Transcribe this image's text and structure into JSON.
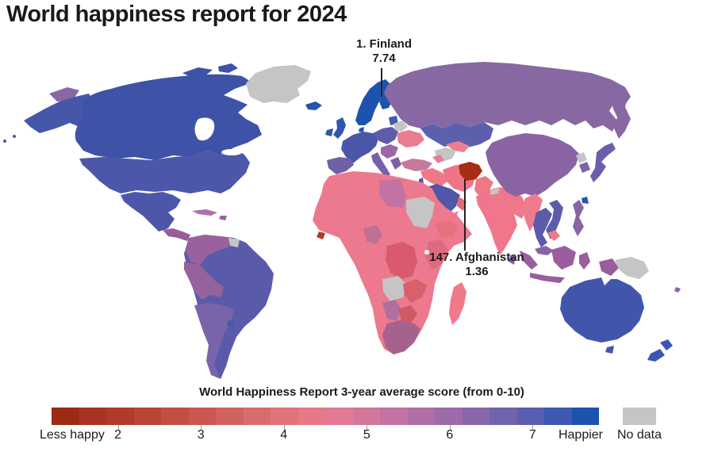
{
  "title": "World happiness report for 2024",
  "annotations": {
    "finland": {
      "label": "1. Finland",
      "value": "7.74"
    },
    "afghanistan": {
      "label": "147. Afghanistan",
      "value": "1.36"
    }
  },
  "legend": {
    "title": "World Happiness Report 3-year average score (from 0-10)",
    "left_label": "Less happy",
    "right_label": "Happier",
    "no_data_label": "No data",
    "no_data_color": "#c5c5c6",
    "range": [
      1.2,
      7.8
    ],
    "ticks": [
      "2",
      "3",
      "4",
      "5",
      "6",
      "7"
    ],
    "gradient_blocks": [
      "#9c2a14",
      "#a93321",
      "#b23a28",
      "#ba4534",
      "#c24f42",
      "#ca5850",
      "#d2625f",
      "#da6b6d",
      "#e2737b",
      "#e67887",
      "#e27a93",
      "#d4779d",
      "#c373a3",
      "#b06fa7",
      "#9d6baa",
      "#8867ac",
      "#7263ae",
      "#5a5eb0",
      "#3f58b1",
      "#1c53b0"
    ]
  },
  "chart_data": {
    "type": "heatmap",
    "title": "World happiness report for 2024",
    "legend_title": "World Happiness Report 3-year average score (from 0-10)",
    "scale": {
      "shown_range": [
        1.2,
        7.8
      ],
      "full_scale": [
        0,
        10
      ],
      "ticks": [
        2,
        3,
        4,
        5,
        6,
        7
      ],
      "left_end_label": "Less happy",
      "right_end_label": "Happier"
    },
    "annotated_points": [
      {
        "rank": 1,
        "country": "Finland",
        "score": 7.74
      },
      {
        "rank": 147,
        "country": "Afghanistan",
        "score": 1.36
      }
    ],
    "colormap": [
      "#9c2a14",
      "#c24f42",
      "#e2737b",
      "#e67887",
      "#c373a3",
      "#8867ac",
      "#5a5eb0",
      "#1c53b0"
    ],
    "no_data_color": "#c5c5c6"
  },
  "map": {
    "regions": {
      "greenland": "#c5c5c6",
      "canada": "#3e52a8",
      "canada-islands": "#3e52a8",
      "alaska": "#4656a9",
      "chukotka-west": "#8768a3",
      "usa": "#4c57aa",
      "mexico": "#4d57a9",
      "central-america": "#9a5d9c",
      "panama": "#4a56a9",
      "cuba": "#b06fa7",
      "hispaniola": "#9a5d9c",
      "venezuela-colombia": "#99619e",
      "guyana": "#c5c5c6",
      "brazil": "#5a5aab",
      "peru-bolivia": "#96629d",
      "argentina-chile": "#7a64a9",
      "uruguay": "#4a58b0",
      "iceland": "#2255b0",
      "uk": "#2e55ae",
      "ireland": "#2e55ae",
      "nordics": "#1c53b0",
      "finland": "#1c53b0",
      "denmark": "#2255b0",
      "baltics": "#3f58b1",
      "west-europe": "#4a56a9",
      "iberia": "#6f60a8",
      "italy": "#7562a8",
      "central-europe": "#5d5cab",
      "belarus": "#c5c5c6",
      "ukraine": "#e87d92",
      "balkans": "#9a68a5",
      "greece": "#8060a5",
      "russia": "#8768a3",
      "kamchatka": "#8768a3",
      "kazakhstan": "#5c60ac",
      "turkmenistan": "#c5c5c6",
      "uzbekistan": "#ec8090",
      "turkey": "#c57a9b",
      "caucasus": "#e87d92",
      "syria-iraq": "#ee7888",
      "israel": "#4a56a9",
      "saudi-arabia": "#5056a8",
      "yemen": "#e8768a",
      "oman": "#e06a7a",
      "iran": "#ee7488",
      "afghanistan": "#a62d15",
      "pakistan": "#ef7888",
      "india": "#ef768b",
      "nepal": "#c5c5c6",
      "bangladesh": "#ee7a8e",
      "sri-lanka": "#8a63a3",
      "china-mongolia": "#8a64a2",
      "north-korea": "#c5c5c6",
      "south-korea": "#7e62a8",
      "japan": "#6a5fab",
      "taiwan": "#2a55b0",
      "myanmar": "#ee7a8c",
      "thailand": "#5b5aab",
      "vietnam": "#5d5cab",
      "cambodia": "#ee7a8c",
      "malaysia": "#8a63a3",
      "philippines": "#8a63a3",
      "indonesia-sumatra": "#9a5e9c",
      "indonesia-java": "#9a5e9c",
      "indonesia-borneo": "#9a5e9c",
      "indonesia-sulawesi": "#9a5e9c",
      "indonesia-newguinea": "#9a5e9c",
      "papua-new-guinea": "#c5c5c6",
      "fiji": "#8a63a3",
      "australia": "#4156ab",
      "tasmania": "#4156ab",
      "new-zealand-north": "#3a58b1",
      "new-zealand-south": "#3a58b1",
      "africa-base": "#ec798e",
      "libya": "#c273a3",
      "sudan": "#c5c5c6",
      "nigeria": "#c06f97",
      "sierra-leone": "#b23a28",
      "drc": "#d95a6e",
      "ethiopia": "#e8707e",
      "kenya-tanzania": "#e06a7e",
      "angola": "#c5c5c6",
      "zambia-zimbabwe": "#d85f6c",
      "namibia": "#b06fa0",
      "botswana": "#d05a64",
      "south-africa": "#a5628f",
      "madagascar": "#ee7a8c"
    }
  }
}
